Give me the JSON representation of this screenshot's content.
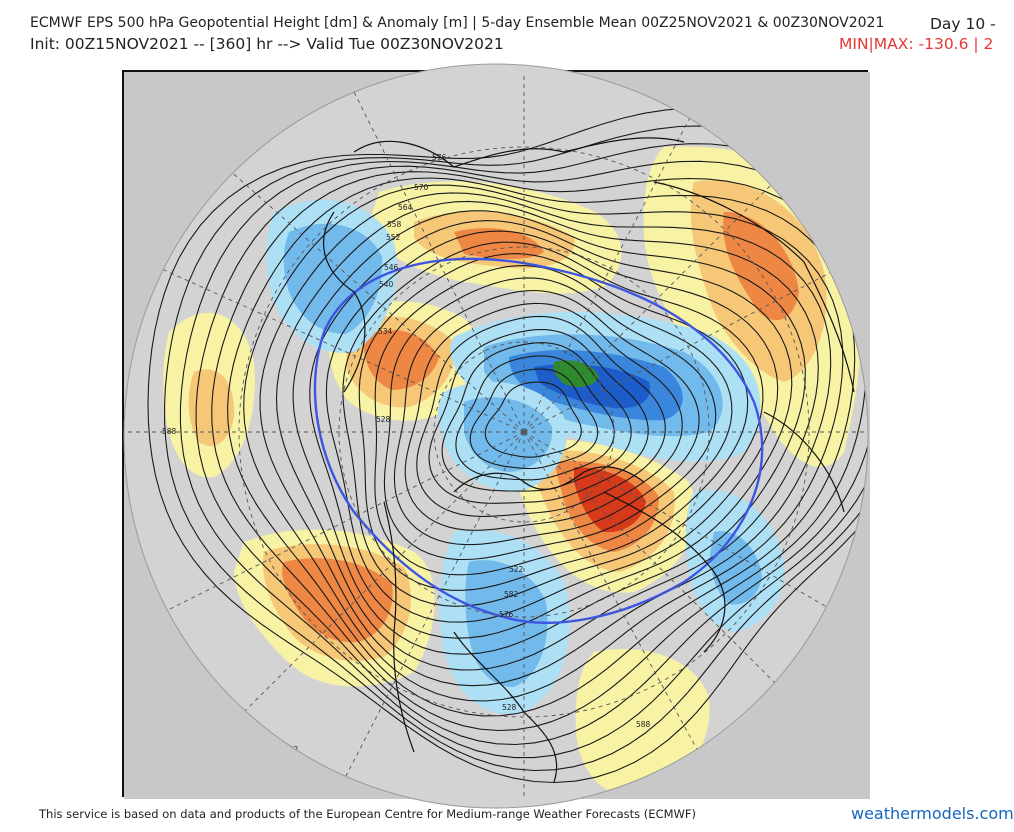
{
  "header": {
    "title": "ECMWF EPS 500 hPa Geopotential Height [dm] & Anomaly [m] | 5-day Ensemble Mean 00Z25NOV2021 & 00Z30NOV2021",
    "init_line": "Init: 00Z15NOV2021 -- [360] hr --> Valid Tue 00Z30NOV2021",
    "day_label": "Day 10 -",
    "minmax_label": "MIN|MAX: -130.6 | 2"
  },
  "map": {
    "projection": "north-polar-stereographic",
    "contour_labels": [
      "576",
      "570",
      "564",
      "558",
      "552",
      "546",
      "540",
      "534",
      "528",
      "522",
      "588",
      "582",
      "576",
      "528",
      "588",
      "582"
    ],
    "colors": {
      "land_gray": "#c8c8c8",
      "ocean_bg": "#d0d0d0",
      "anomaly_pos_light": "#f7f2a4",
      "anomaly_pos_mid": "#f6c777",
      "anomaly_pos_strong": "#ee8744",
      "anomaly_pos_max": "#d63a1b",
      "anomaly_neg_light": "#aee0f5",
      "anomaly_neg_mid": "#72b9ec",
      "anomaly_neg_strong": "#3a86dc",
      "anomaly_neg_max": "#1c5ccb",
      "anomaly_min_green": "#2e8b2e",
      "contour_black": "#1a1a1a",
      "contour_blue": "#3d55e0"
    }
  },
  "footer": {
    "credit": "This service is based on data and products of the European Centre for Medium-range Weather Forecasts (ECMWF)",
    "brand": "weathermodels.com"
  }
}
